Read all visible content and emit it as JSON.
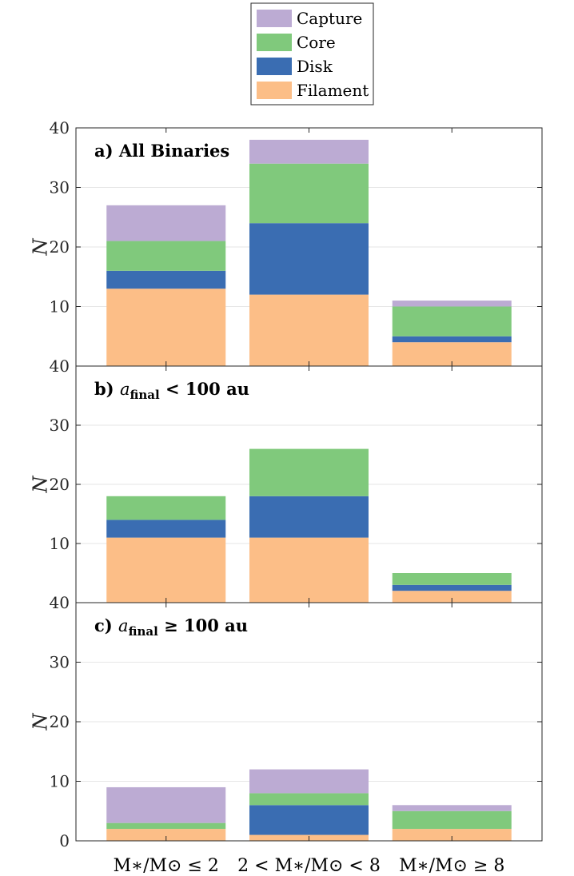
{
  "chart_data": [
    {
      "type": "bar",
      "stacked": true,
      "title": "a) All Binaries",
      "title_parts": [
        {
          "text": "a) All Binaries",
          "style": "bold"
        }
      ],
      "ylabel": "N",
      "ylim": [
        0,
        40
      ],
      "yticks": [
        "10",
        "20",
        "30",
        "40"
      ],
      "categories": [
        "M∗/M⊙ ≤ 2",
        "2 < M∗/M⊙ < 8",
        "M∗/M⊙ ≥ 8"
      ],
      "series": [
        {
          "name": "Filament",
          "values": [
            13,
            12,
            4
          ]
        },
        {
          "name": "Disk",
          "values": [
            3,
            12,
            1
          ]
        },
        {
          "name": "Core",
          "values": [
            5,
            10,
            5
          ]
        },
        {
          "name": "Capture",
          "values": [
            6,
            4,
            1
          ]
        }
      ]
    },
    {
      "type": "bar",
      "stacked": true,
      "title": "b) afinal < 100 au",
      "title_parts": [
        {
          "text": "b) ",
          "style": "bold"
        },
        {
          "text": "a",
          "style": "var"
        },
        {
          "text": "final",
          "style": "sub"
        },
        {
          "text": " < 100 au",
          "style": "bold"
        }
      ],
      "ylabel": "N",
      "ylim": [
        0,
        40
      ],
      "yticks": [
        "10",
        "20",
        "30",
        "40"
      ],
      "categories": [
        "M∗/M⊙ ≤ 2",
        "2 < M∗/M⊙ < 8",
        "M∗/M⊙ ≥ 8"
      ],
      "series": [
        {
          "name": "Filament",
          "values": [
            11,
            11,
            2
          ]
        },
        {
          "name": "Disk",
          "values": [
            3,
            7,
            1
          ]
        },
        {
          "name": "Core",
          "values": [
            4,
            8,
            2
          ]
        },
        {
          "name": "Capture",
          "values": [
            0,
            0,
            0
          ]
        }
      ]
    },
    {
      "type": "bar",
      "stacked": true,
      "title": "c) afinal ≥ 100 au",
      "title_parts": [
        {
          "text": "c) ",
          "style": "bold"
        },
        {
          "text": "a",
          "style": "var"
        },
        {
          "text": "final",
          "style": "sub"
        },
        {
          "text": " ≥ 100 au",
          "style": "bold"
        }
      ],
      "ylabel": "N",
      "ylim": [
        0,
        40
      ],
      "yticks": [
        "0",
        "10",
        "20",
        "30",
        "40"
      ],
      "categories": [
        "M∗/M⊙ ≤ 2",
        "2 < M∗/M⊙ < 8",
        "M∗/M⊙ ≥ 8"
      ],
      "series": [
        {
          "name": "Filament",
          "values": [
            2,
            1,
            2
          ]
        },
        {
          "name": "Disk",
          "values": [
            0,
            5,
            0
          ]
        },
        {
          "name": "Core",
          "values": [
            1,
            2,
            3
          ]
        },
        {
          "name": "Capture",
          "values": [
            6,
            4,
            1
          ]
        }
      ]
    }
  ],
  "legend": {
    "placement": "top-center",
    "entries": [
      {
        "name": "Capture",
        "color": "#bcabd3"
      },
      {
        "name": "Core",
        "color": "#80c97c"
      },
      {
        "name": "Disk",
        "color": "#3a6db2"
      },
      {
        "name": "Filament",
        "color": "#fcbe87"
      }
    ]
  },
  "colors": {
    "Filament": "#fcbe87",
    "Disk": "#3a6db2",
    "Core": "#80c97c",
    "Capture": "#bcabd3",
    "grid": "#e6e6e6",
    "axis": "#262626"
  },
  "xaxis": {
    "categories": [
      "M∗/M⊙ ≤ 2",
      "2 < M∗/M⊙ < 8",
      "M∗/M⊙ ≥ 8"
    ]
  }
}
